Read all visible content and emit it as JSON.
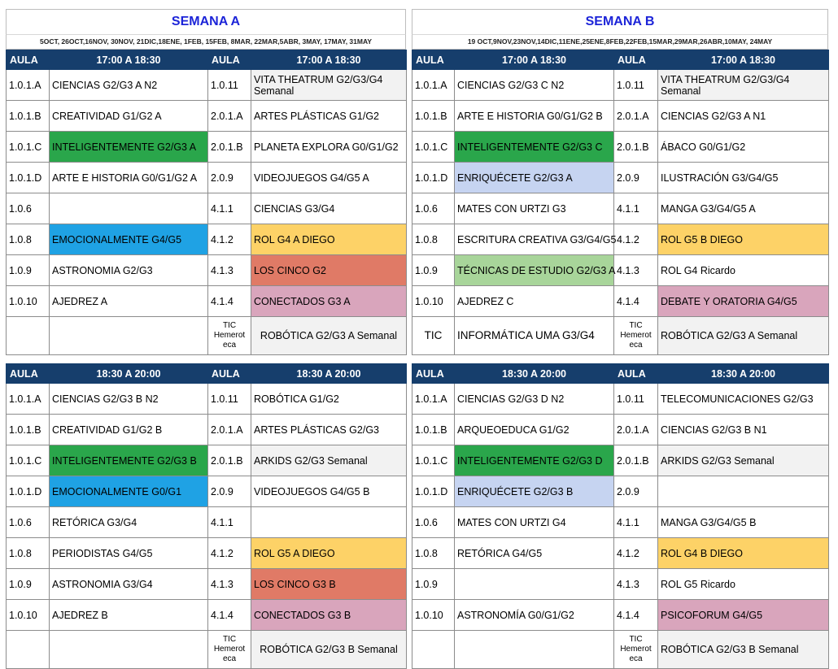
{
  "weeks": [
    {
      "title": "SEMANA A",
      "dates": "5OCT, 26OCT,16NOV, 30NOV, 21DIC,18ENE, 1FEB, 15FEB, 8MAR, 22MAR,5ABR, 3MAY, 17MAY, 31MAY",
      "blocks": [
        {
          "time": "17:00 A 18:30",
          "aula_label": "AULA",
          "rows": [
            {
              "aula1": "1.0.1.A",
              "act1": "CIENCIAS G2/G3 A N2",
              "aula2": "1.0.11",
              "act2": "VITA THEATRUM G2/G3/G4 Semanal"
            },
            {
              "aula1": "1.0.1.B",
              "act1": "CREATIVIDAD G1/G2 A",
              "aula2": "2.0.1.A",
              "act2": "ARTES PLÁSTICAS G1/G2"
            },
            {
              "aula1": "1.0.1.C",
              "act1": "INTELIGENTEMENTE G2/G3 A",
              "aula2": "2.0.1.B",
              "act2": "PLANETA EXPLORA G0/G1/G2"
            },
            {
              "aula1": "1.0.1.D",
              "act1": "ARTE E HISTORIA G0/G1/G2 A",
              "aula2": "2.0.9",
              "act2": "VIDEOJUEGOS G4/G5 A"
            },
            {
              "aula1": "1.0.6",
              "act1": "",
              "aula2": "4.1.1",
              "act2": "CIENCIAS G3/G4"
            },
            {
              "aula1": "1.0.8",
              "act1": "EMOCIONALMENTE G4/G5",
              "aula2": "4.1.2",
              "act2": "ROL G4 A DIEGO"
            },
            {
              "aula1": "1.0.9",
              "act1": "ASTRONOMIA G2/G3",
              "aula2": "4.1.3",
              "act2": "LOS CINCO G2"
            },
            {
              "aula1": "1.0.10",
              "act1": "AJEDREZ A",
              "aula2": "4.1.4",
              "act2": "CONECTADOS G3 A"
            },
            {
              "aula1": "",
              "act1": "",
              "aula2": "TIC Hemerot eca",
              "act2": "ROBÓTICA G2/G3 A Semanal"
            }
          ]
        },
        {
          "time": "18:30 A 20:00",
          "aula_label": "AULA",
          "rows": [
            {
              "aula1": "1.0.1.A",
              "act1": "CIENCIAS G2/G3 B N2",
              "aula2": "1.0.11",
              "act2": "ROBÓTICA G1/G2"
            },
            {
              "aula1": "1.0.1.B",
              "act1": "CREATIVIDAD G1/G2 B",
              "aula2": "2.0.1.A",
              "act2": "ARTES PLÁSTICAS G2/G3"
            },
            {
              "aula1": "1.0.1.C",
              "act1": "INTELIGENTEMENTE G2/G3 B",
              "aula2": "2.0.1.B",
              "act2": "ARKIDS G2/G3 Semanal"
            },
            {
              "aula1": "1.0.1.D",
              "act1": "EMOCIONALMENTE G0/G1",
              "aula2": "2.0.9",
              "act2": "VIDEOJUEGOS G4/G5 B"
            },
            {
              "aula1": "1.0.6",
              "act1": "RETÓRICA G3/G4",
              "aula2": "4.1.1",
              "act2": ""
            },
            {
              "aula1": "1.0.8",
              "act1": "PERIODISTAS G4/G5",
              "aula2": "4.1.2",
              "act2": "ROL G5 A DIEGO"
            },
            {
              "aula1": "1.0.9",
              "act1": "ASTRONOMIA G3/G4",
              "aula2": "4.1.3",
              "act2": "LOS CINCO G3 B"
            },
            {
              "aula1": "1.0.10",
              "act1": "AJEDREZ B",
              "aula2": "4.1.4",
              "act2": "CONECTADOS G3 B"
            },
            {
              "aula1": "",
              "act1": "",
              "aula2": "TIC Hemerot eca",
              "act2": "ROBÓTICA G2/G3 B Semanal"
            }
          ]
        }
      ]
    },
    {
      "title": "SEMANA B",
      "dates": "19 OCT,9NOV,23NOV,14DIC,11ENE,25ENE,8FEB,22FEB,15MAR,29MAR,26ABR,10MAY, 24MAY",
      "blocks": [
        {
          "time": "17:00 A 18:30",
          "aula_label": "AULA",
          "rows": [
            {
              "aula1": "1.0.1.A",
              "act1": "CIENCIAS G2/G3 C N2",
              "aula2": "1.0.11",
              "act2": "VITA THEATRUM G2/G3/G4 Semanal"
            },
            {
              "aula1": "1.0.1.B",
              "act1": "ARTE E HISTORIA G0/G1/G2 B",
              "aula2": "2.0.1.A",
              "act2": "CIENCIAS G2/G3 A N1"
            },
            {
              "aula1": "1.0.1.C",
              "act1": "INTELIGENTEMENTE G2/G3 C",
              "aula2": "2.0.1.B",
              "act2": "ÁBACO G0/G1/G2"
            },
            {
              "aula1": "1.0.1.D",
              "act1": "ENRIQUÉCETE G2/G3 A",
              "aula2": "2.0.9",
              "act2": "ILUSTRACIÓN G3/G4/G5"
            },
            {
              "aula1": "1.0.6",
              "act1": "MATES CON URTZI G3",
              "aula2": "4.1.1",
              "act2": "MANGA G3/G4/G5 A"
            },
            {
              "aula1": "1.0.8",
              "act1": "ESCRITURA CREATIVA G3/G4/G5",
              "aula2": "4.1.2",
              "act2": "ROL G5 B DIEGO"
            },
            {
              "aula1": "1.0.9",
              "act1": "TÉCNICAS DE ESTUDIO G2/G3 A",
              "aula2": "4.1.3",
              "act2": "ROL G4 Ricardo"
            },
            {
              "aula1": "1.0.10",
              "act1": "AJEDREZ C",
              "aula2": "4.1.4",
              "act2": "DEBATE Y ORATORIA G4/G5"
            },
            {
              "aula1": "TIC",
              "act1": "INFORMÁTICA UMA G3/G4",
              "aula2": "TIC Hemerot eca",
              "act2": "ROBÓTICA G2/G3 A Semanal"
            }
          ]
        },
        {
          "time": "18:30 A 20:00",
          "aula_label": "AULA",
          "rows": [
            {
              "aula1": "1.0.1.A",
              "act1": "CIENCIAS G2/G3 D N2",
              "aula2": "1.0.11",
              "act2": "TELECOMUNICACIONES G2/G3"
            },
            {
              "aula1": "1.0.1.B",
              "act1": "ARQUEOEDUCA G1/G2",
              "aula2": "2.0.1.A",
              "act2": "CIENCIAS G2/G3 B N1"
            },
            {
              "aula1": "1.0.1.C",
              "act1": "INTELIGENTEMENTE G2/G3 D",
              "aula2": "2.0.1.B",
              "act2": "ARKIDS G2/G3 Semanal"
            },
            {
              "aula1": "1.0.1.D",
              "act1": "ENRIQUÉCETE G2/G3 B",
              "aula2": "2.0.9",
              "act2": ""
            },
            {
              "aula1": "1.0.6",
              "act1": "MATES CON URTZI G4",
              "aula2": "4.1.1",
              "act2": "MANGA G3/G4/G5 B"
            },
            {
              "aula1": "1.0.8",
              "act1": "RETÓRICA G4/G5",
              "aula2": "4.1.2",
              "act2": "ROL G4 B DIEGO"
            },
            {
              "aula1": "1.0.9",
              "act1": "",
              "aula2": "4.1.3",
              "act2": "ROL G5 Ricardo"
            },
            {
              "aula1": "1.0.10",
              "act1": "ASTRONOMÍA G0/G1/G2",
              "aula2": "4.1.4",
              "act2": "PSICOFORUM G4/G5"
            },
            {
              "aula1": "",
              "act1": "",
              "aula2": "TIC Hemerot eca",
              "act2": "ROBÓTICA G2/G3 B Semanal"
            }
          ]
        }
      ]
    }
  ],
  "colors": {
    "header_bg": "#163e6c",
    "title_blue": "#1c24d8",
    "green": "#2aa64b",
    "blue": "#1fa2e4",
    "yellow": "#fdd267",
    "red": "#e07a66",
    "pink": "#d9a5bc",
    "light_blue": "#c6d4f1",
    "light_green": "#a8d59a",
    "gray": "#f2f2f2"
  }
}
